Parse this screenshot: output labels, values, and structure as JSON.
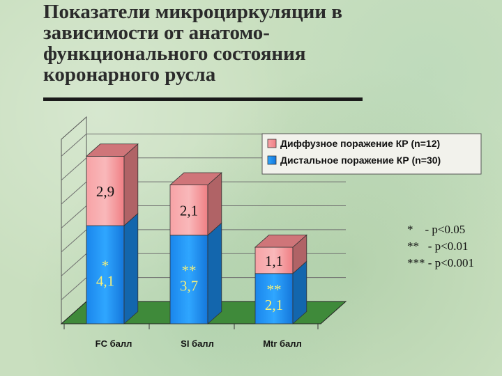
{
  "title": "Показатели микроциркуляции в\nзависимости от анатомо-\nфункционального состояния\nкоронарного русла",
  "colors": {
    "top": "#f48a8e",
    "bottom": "#1b8df0"
  },
  "chart_data": {
    "type": "bar",
    "stacked": true,
    "view": "3d",
    "categories": [
      "FC балл",
      "SI балл",
      "Mtr балл"
    ],
    "series": [
      {
        "name": "Дистальное поражение КР (n=30)",
        "values": [
          4.1,
          3.7,
          2.1
        ],
        "labels": [
          "4,1",
          "3,7",
          "2,1"
        ],
        "marks": [
          "*",
          "**",
          "**"
        ],
        "color": "#1b8df0"
      },
      {
        "name": "Диффузное поражение КР (n=12)",
        "values": [
          2.9,
          2.1,
          1.1
        ],
        "labels": [
          "2,9",
          "2,1",
          "1,1"
        ],
        "color": "#f48a8e"
      }
    ],
    "legend_position": "top-right",
    "grid": true
  },
  "significance": [
    "*    - p<0.05",
    "**   - p<0.01",
    "*** - p<0.001"
  ]
}
